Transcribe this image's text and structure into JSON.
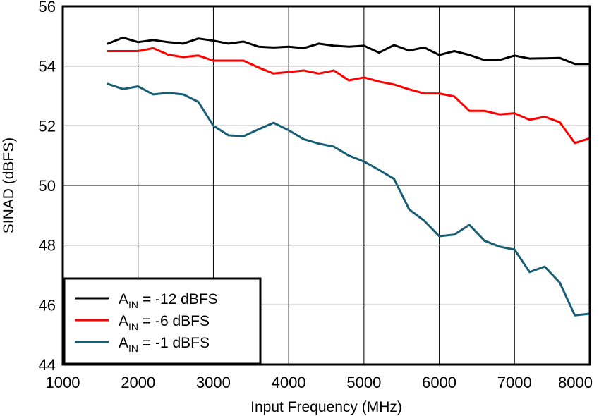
{
  "chart_data": {
    "type": "line",
    "xlabel": "Input Frequency (MHz)",
    "ylabel": "SINAD (dBFS)",
    "xlim": [
      1000,
      8000
    ],
    "ylim": [
      44,
      56
    ],
    "xticks": [
      1000,
      2000,
      3000,
      4000,
      5000,
      6000,
      7000,
      8000
    ],
    "yticks": [
      44,
      46,
      48,
      50,
      52,
      54,
      56
    ],
    "grid": true,
    "legend_position": "bottom-left",
    "x": [
      1600,
      1800,
      2000,
      2200,
      2400,
      2600,
      2800,
      3000,
      3200,
      3400,
      3600,
      3800,
      4000,
      4200,
      4400,
      4600,
      4800,
      5000,
      5200,
      5400,
      5600,
      5800,
      6000,
      6200,
      6400,
      6600,
      6800,
      7000,
      7200,
      7400,
      7600,
      7800,
      8000
    ],
    "series": [
      {
        "legend_prefix": "A",
        "legend_subscript": "IN",
        "legend_suffix": " = -12 dBFS",
        "color": "#000000",
        "values": [
          54.75,
          54.95,
          54.8,
          54.87,
          54.8,
          54.75,
          54.92,
          54.85,
          54.75,
          54.82,
          54.65,
          54.62,
          54.65,
          54.6,
          54.75,
          54.68,
          54.65,
          54.68,
          54.45,
          54.7,
          54.52,
          54.62,
          54.37,
          54.5,
          54.37,
          54.2,
          54.2,
          54.35,
          54.25,
          54.26,
          54.27,
          54.07,
          54.07
        ]
      },
      {
        "legend_prefix": "A",
        "legend_subscript": "IN",
        "legend_suffix": " = -6 dBFS",
        "color": "#ff0000",
        "values": [
          54.5,
          54.5,
          54.5,
          54.6,
          54.38,
          54.3,
          54.35,
          54.18,
          54.18,
          54.18,
          53.95,
          53.75,
          53.8,
          53.85,
          53.75,
          53.85,
          53.52,
          53.62,
          53.48,
          53.38,
          53.22,
          53.08,
          53.08,
          52.98,
          52.5,
          52.5,
          52.38,
          52.42,
          52.2,
          52.3,
          52.12,
          51.42,
          51.58
        ]
      },
      {
        "legend_prefix": "A",
        "legend_subscript": "IN",
        "legend_suffix": " = -1 dBFS",
        "color": "#175d73",
        "values": [
          53.4,
          53.23,
          53.32,
          53.05,
          53.1,
          53.05,
          52.8,
          52.0,
          51.68,
          51.65,
          51.88,
          52.1,
          51.85,
          51.55,
          51.4,
          51.3,
          51.0,
          50.8,
          50.52,
          50.22,
          49.2,
          48.82,
          48.3,
          48.35,
          48.68,
          48.15,
          47.95,
          47.85,
          47.1,
          47.28,
          46.75,
          45.65,
          45.7
        ]
      }
    ]
  }
}
